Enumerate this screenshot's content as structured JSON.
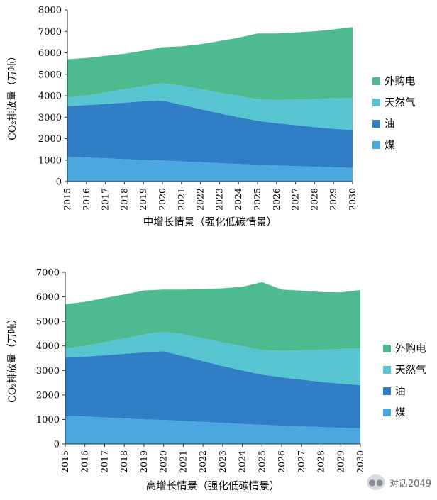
{
  "chart_data": [
    {
      "type": "area",
      "stacked": true,
      "caption": "中增长情景（强化低碳情景）",
      "ylabel": "CO₂排放量（万吨）",
      "xlabel": "",
      "ylim": [
        0,
        8000
      ],
      "yticks": [
        0,
        1000,
        2000,
        3000,
        4000,
        5000,
        6000,
        7000,
        8000
      ],
      "x": [
        "2015",
        "2016",
        "2017",
        "2018",
        "2019",
        "2020",
        "2021",
        "2022",
        "2023",
        "2024",
        "2025",
        "2026",
        "2027",
        "2028",
        "2029",
        "2030"
      ],
      "legend_position": "right",
      "grid": false,
      "series": [
        {
          "name": "煤",
          "color": "#4aa8df",
          "values": [
            1150,
            1120,
            1080,
            1040,
            1000,
            980,
            940,
            900,
            860,
            820,
            780,
            750,
            720,
            690,
            660,
            640
          ]
        },
        {
          "name": "油",
          "color": "#2f7ec6",
          "values": [
            2370,
            2440,
            2540,
            2640,
            2740,
            2800,
            2640,
            2480,
            2320,
            2180,
            2050,
            1970,
            1910,
            1850,
            1800,
            1760
          ]
        },
        {
          "name": "天然气",
          "color": "#56c5cf",
          "values": [
            400,
            440,
            530,
            620,
            720,
            800,
            890,
            930,
            960,
            990,
            1000,
            1080,
            1190,
            1300,
            1420,
            1500
          ]
        },
        {
          "name": "外购电",
          "color": "#4dba8f",
          "values": [
            1780,
            1760,
            1710,
            1660,
            1640,
            1680,
            1830,
            2090,
            2410,
            2710,
            3070,
            3100,
            3130,
            3160,
            3210,
            3300
          ]
        }
      ]
    },
    {
      "type": "area",
      "stacked": true,
      "caption": "高增长情景（强化低碳情景）",
      "ylabel": "CO₂排放量（万吨）",
      "xlabel": "",
      "ylim": [
        0,
        7000
      ],
      "yticks": [
        0,
        1000,
        2000,
        3000,
        4000,
        5000,
        6000,
        7000
      ],
      "x": [
        "2015",
        "2016",
        "2017",
        "2018",
        "2019",
        "2020",
        "2021",
        "2022",
        "2023",
        "2024",
        "2025",
        "2026",
        "2027",
        "2028",
        "2029",
        "2030"
      ],
      "legend_position": "right",
      "grid": false,
      "series": [
        {
          "name": "煤",
          "color": "#4aa8df",
          "values": [
            1150,
            1120,
            1080,
            1040,
            1000,
            980,
            940,
            900,
            860,
            820,
            780,
            750,
            720,
            690,
            660,
            640
          ]
        },
        {
          "name": "油",
          "color": "#2f7ec6",
          "values": [
            2370,
            2440,
            2540,
            2640,
            2740,
            2800,
            2640,
            2480,
            2320,
            2180,
            2050,
            1970,
            1910,
            1850,
            1800,
            1760
          ]
        },
        {
          "name": "天然气",
          "color": "#56c5cf",
          "values": [
            380,
            440,
            530,
            620,
            720,
            800,
            890,
            930,
            960,
            990,
            1000,
            1080,
            1190,
            1300,
            1420,
            1500
          ]
        },
        {
          "name": "外购电",
          "color": "#4dba8f",
          "values": [
            1800,
            1800,
            1800,
            1800,
            1800,
            1720,
            1830,
            2000,
            2210,
            2420,
            2770,
            2500,
            2430,
            2360,
            2300,
            2380
          ]
        }
      ]
    }
  ],
  "watermark": {
    "icon": "speech-bubble-icon",
    "text": "对话2049"
  }
}
